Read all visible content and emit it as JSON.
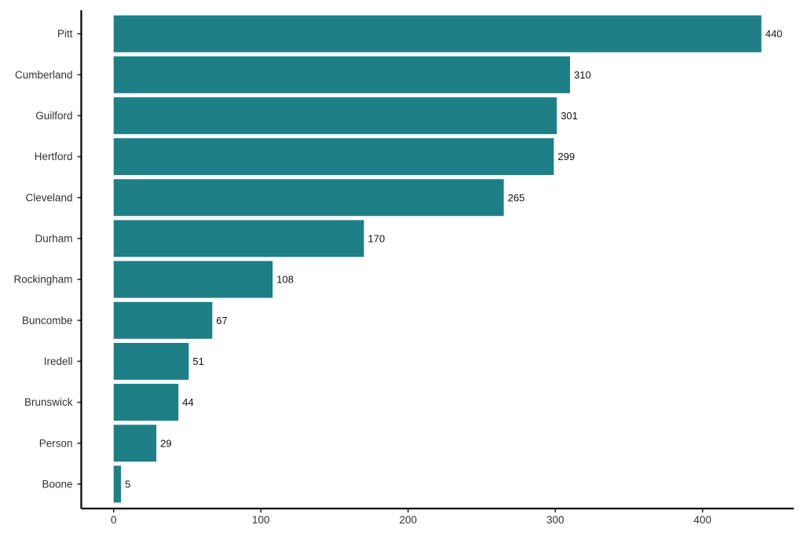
{
  "chart_data": {
    "type": "bar",
    "orientation": "horizontal",
    "title": "",
    "xlabel": "",
    "ylabel": "",
    "categories": [
      "Pitt",
      "Cumberland",
      "Guilford",
      "Hertford",
      "Cleveland",
      "Durham",
      "Rockingham",
      "Buncombe",
      "Iredell",
      "Brunswick",
      "Person",
      "Boone"
    ],
    "values": [
      440,
      310,
      301,
      299,
      265,
      170,
      108,
      67,
      51,
      44,
      29,
      5
    ],
    "xlim": [
      -22,
      462
    ],
    "xticks": [
      0,
      100,
      200,
      300,
      400
    ],
    "grid": false,
    "legend": "none",
    "data_labels": true,
    "bar_color": "#1f7f86"
  }
}
